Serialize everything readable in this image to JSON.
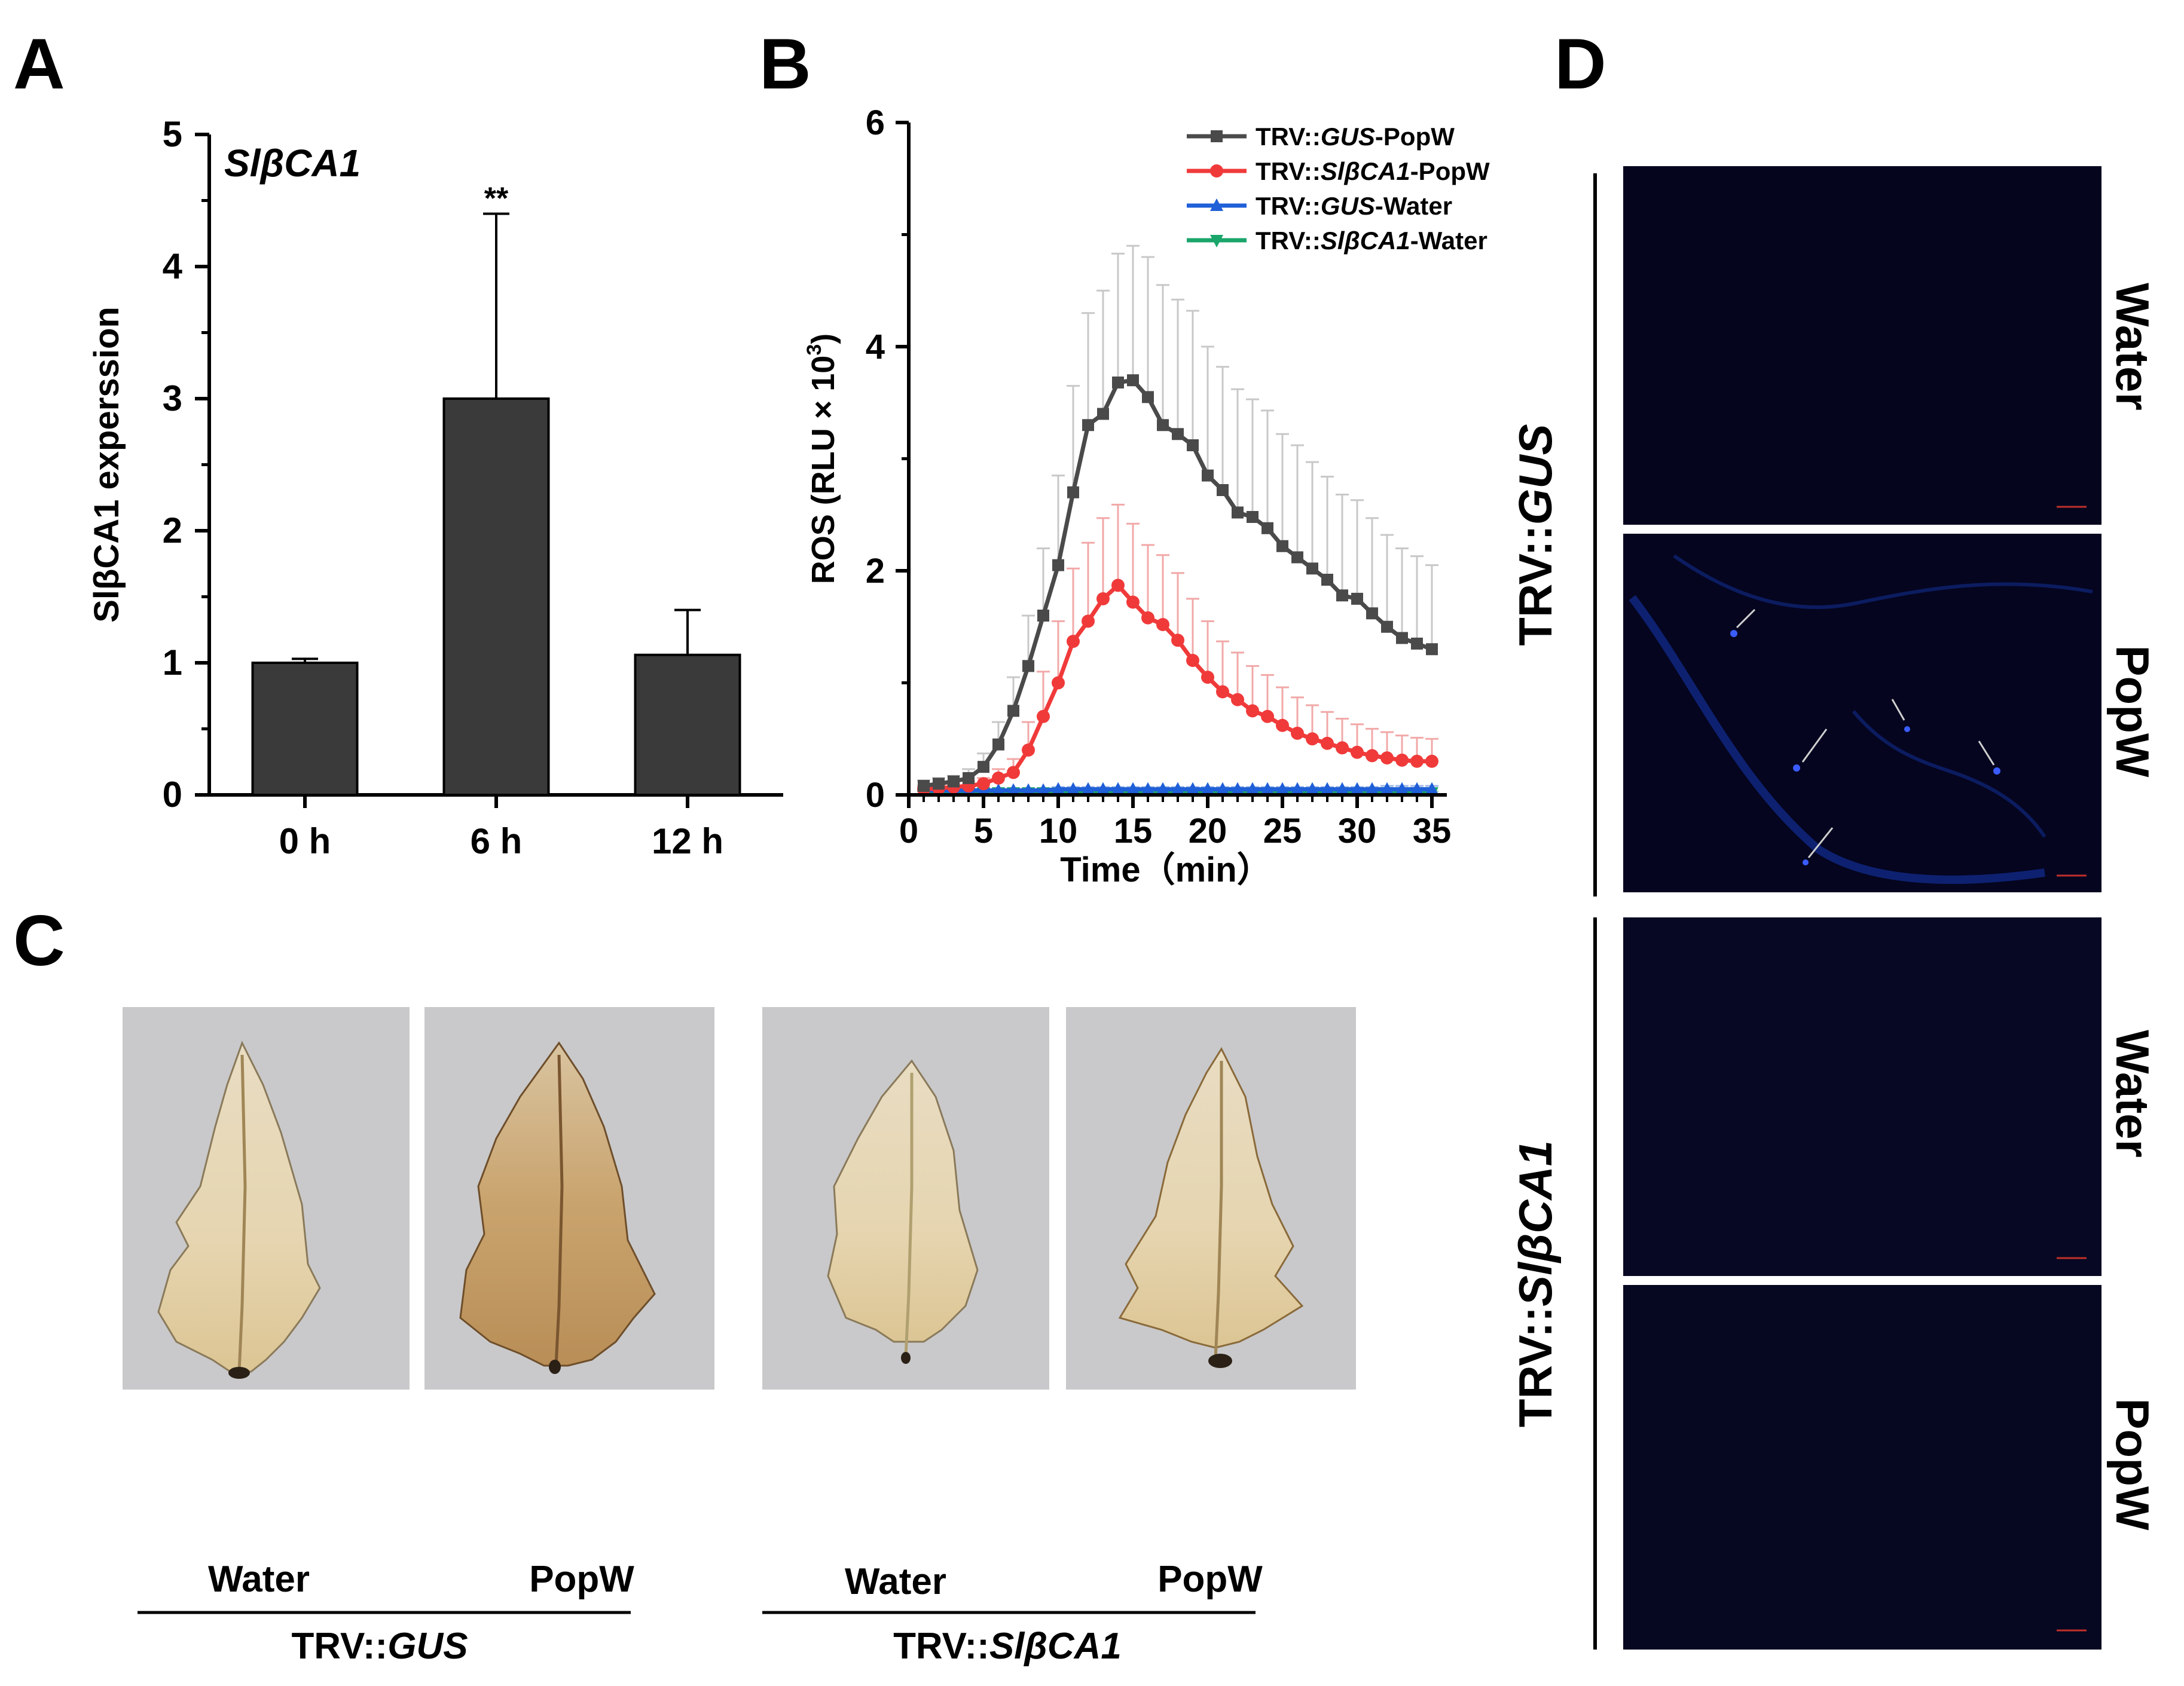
{
  "figure": {
    "panel_letters": [
      "A",
      "B",
      "C",
      "D"
    ]
  },
  "chart_data": [
    {
      "panel": "A",
      "type": "bar",
      "title": "SlβCA1",
      "xlabel": "",
      "ylabel": "SlβCA1 experssion",
      "categories": [
        "0 h",
        "6 h",
        "12 h"
      ],
      "values": [
        1.0,
        3.0,
        1.06
      ],
      "errors": [
        0.03,
        1.4,
        0.34
      ],
      "annotations": [
        {
          "category": "6 h",
          "text": "**"
        }
      ],
      "ylim": [
        0,
        5
      ],
      "yticks": [
        "0",
        "1",
        "2",
        "3",
        "4",
        "5"
      ],
      "bar_color": "#3a3a3a"
    },
    {
      "panel": "B",
      "type": "line",
      "xlabel": "Time（min）",
      "ylabel_prefix": "ROS (RLU × 10",
      "ylabel_sup": "3",
      "ylabel_suffix": ")",
      "x": [
        1,
        2,
        3,
        4,
        5,
        6,
        7,
        8,
        9,
        10,
        11,
        12,
        13,
        14,
        15,
        16,
        17,
        18,
        19,
        20,
        21,
        22,
        23,
        24,
        25,
        26,
        27,
        28,
        29,
        30,
        31,
        32,
        33,
        34,
        35
      ],
      "xlim": [
        0,
        36
      ],
      "ylim": [
        0,
        6
      ],
      "xticks": [
        "0",
        "5",
        "10",
        "15",
        "20",
        "25",
        "30",
        "35"
      ],
      "yticks": [
        "0",
        "2",
        "4",
        "6"
      ],
      "series": [
        {
          "name": "TRV::GUS-PopW",
          "legend": [
            "TRV::",
            "GUS",
            "-PopW"
          ],
          "color": "#4a4a4a",
          "error_color": "#c8c8c8",
          "marker": "square",
          "values": [
            0.08,
            0.1,
            0.12,
            0.15,
            0.25,
            0.45,
            0.75,
            1.15,
            1.6,
            2.05,
            2.7,
            3.3,
            3.4,
            3.68,
            3.7,
            3.55,
            3.3,
            3.22,
            3.12,
            2.85,
            2.72,
            2.52,
            2.48,
            2.38,
            2.22,
            2.12,
            2.02,
            1.92,
            1.78,
            1.75,
            1.62,
            1.5,
            1.4,
            1.35,
            1.3
          ],
          "errors": [
            0.05,
            0.05,
            0.05,
            0.08,
            0.12,
            0.2,
            0.3,
            0.45,
            0.6,
            0.8,
            0.95,
            1.0,
            1.1,
            1.15,
            1.2,
            1.25,
            1.25,
            1.2,
            1.2,
            1.15,
            1.1,
            1.1,
            1.05,
            1.05,
            1.0,
            1.0,
            0.95,
            0.92,
            0.9,
            0.88,
            0.85,
            0.82,
            0.8,
            0.78,
            0.75
          ]
        },
        {
          "name": "TRV::SlβCA1-PopW",
          "legend": [
            "TRV::",
            "SlβCA1",
            "-PopW"
          ],
          "color": "#f03a3a",
          "error_color": "#f2a8a8",
          "marker": "circle",
          "values": [
            0.05,
            0.06,
            0.07,
            0.08,
            0.1,
            0.15,
            0.2,
            0.4,
            0.7,
            1.0,
            1.37,
            1.55,
            1.75,
            1.87,
            1.72,
            1.58,
            1.52,
            1.38,
            1.2,
            1.05,
            0.92,
            0.85,
            0.75,
            0.7,
            0.62,
            0.55,
            0.5,
            0.46,
            0.42,
            0.38,
            0.35,
            0.33,
            0.31,
            0.3,
            0.3
          ],
          "errors": [
            0.03,
            0.03,
            0.03,
            0.04,
            0.05,
            0.08,
            0.12,
            0.25,
            0.4,
            0.55,
            0.65,
            0.7,
            0.72,
            0.72,
            0.7,
            0.65,
            0.62,
            0.6,
            0.55,
            0.5,
            0.45,
            0.42,
            0.4,
            0.37,
            0.34,
            0.32,
            0.3,
            0.28,
            0.26,
            0.25,
            0.24,
            0.23,
            0.22,
            0.21,
            0.2
          ]
        },
        {
          "name": "TRV::GUS-Water",
          "legend": [
            "TRV::",
            "GUS",
            "-Water"
          ],
          "color": "#1f5fd8",
          "error_color": "#9fb8e8",
          "marker": "triangle-up",
          "values": [
            0.04,
            0.04,
            0.04,
            0.04,
            0.04,
            0.04,
            0.04,
            0.04,
            0.04,
            0.05,
            0.05,
            0.05,
            0.05,
            0.05,
            0.05,
            0.05,
            0.05,
            0.05,
            0.05,
            0.05,
            0.05,
            0.05,
            0.05,
            0.05,
            0.05,
            0.05,
            0.05,
            0.05,
            0.05,
            0.05,
            0.05,
            0.05,
            0.05,
            0.05,
            0.05
          ],
          "errors": [
            0.02,
            0.02,
            0.02,
            0.02,
            0.02,
            0.02,
            0.02,
            0.02,
            0.02,
            0.02,
            0.02,
            0.02,
            0.02,
            0.02,
            0.02,
            0.02,
            0.02,
            0.02,
            0.02,
            0.02,
            0.02,
            0.02,
            0.02,
            0.02,
            0.02,
            0.02,
            0.02,
            0.02,
            0.02,
            0.02,
            0.02,
            0.03,
            0.03,
            0.03,
            0.03
          ]
        },
        {
          "name": "TRV::SlβCA1-Water",
          "legend": [
            "TRV::",
            "SlβCA1",
            "-Water"
          ],
          "color": "#1aa56a",
          "error_color": "#9bd8bc",
          "marker": "triangle-down",
          "values": [
            0.02,
            0.02,
            0.02,
            0.02,
            0.02,
            0.02,
            0.02,
            0.02,
            0.02,
            0.02,
            0.02,
            0.02,
            0.02,
            0.02,
            0.02,
            0.02,
            0.02,
            0.02,
            0.02,
            0.02,
            0.02,
            0.02,
            0.02,
            0.02,
            0.02,
            0.02,
            0.02,
            0.02,
            0.02,
            0.02,
            0.02,
            0.02,
            0.02,
            0.02,
            0.02
          ],
          "errors": [
            0.01,
            0.01,
            0.01,
            0.01,
            0.01,
            0.01,
            0.01,
            0.01,
            0.01,
            0.01,
            0.01,
            0.01,
            0.01,
            0.01,
            0.01,
            0.01,
            0.01,
            0.01,
            0.01,
            0.01,
            0.01,
            0.01,
            0.01,
            0.01,
            0.01,
            0.01,
            0.01,
            0.01,
            0.01,
            0.01,
            0.01,
            0.01,
            0.01,
            0.01,
            0.01
          ]
        }
      ]
    }
  ],
  "panel_c": {
    "leaves": [
      {
        "label": "Water",
        "stain": "light"
      },
      {
        "label": "PopW",
        "stain": "heavy"
      },
      {
        "label": "Water",
        "stain": "light"
      },
      {
        "label": "PopW",
        "stain": "light"
      }
    ],
    "groups": [
      {
        "prefix": "TRV::",
        "name": "GUS"
      },
      {
        "prefix": "TRV::",
        "name": "SlβCA1"
      }
    ],
    "background_color": "#c9c9cb"
  },
  "panel_d": {
    "groups": [
      {
        "prefix": "TRV::",
        "name": "GUS"
      },
      {
        "prefix": "TRV::",
        "name": "SlβCA1"
      }
    ],
    "row_labels": [
      "Water",
      "PopW",
      "Water",
      "PopW"
    ],
    "image_color": "#05061e"
  }
}
